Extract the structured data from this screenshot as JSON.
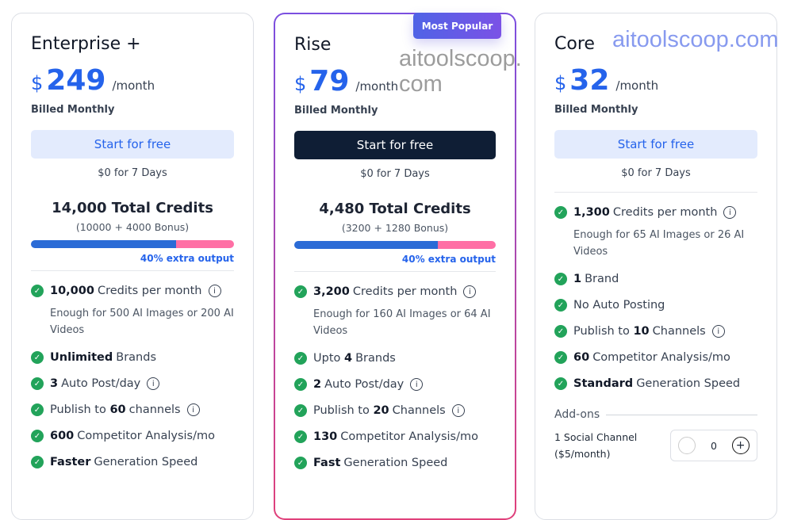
{
  "plans": [
    {
      "name": "Enterprise +",
      "currency": "$",
      "price": "249",
      "period": "/month",
      "billing": "Billed Monthly",
      "cta": "Start for free",
      "trial": "$0 for 7 Days",
      "total_credits": "14,000 Total Credits",
      "breakdown": "(10000 + 4000 Bonus)",
      "base_fraction": 0.714,
      "extra": "40% extra output",
      "features": [
        {
          "bold": "10,000",
          "text": "Credits per month",
          "info": true,
          "note": "Enough for 500 AI Images or 200 AI Videos"
        },
        {
          "bold": "Unlimited",
          "text": "Brands"
        },
        {
          "bold": "3",
          "text": "Auto Post/day",
          "info": true
        },
        {
          "pre": "Publish to",
          "bold": "60",
          "text": "channels",
          "info": true
        },
        {
          "bold": "600",
          "text": "Competitor Analysis/mo"
        },
        {
          "bold": "Faster",
          "text": "Generation Speed"
        }
      ]
    },
    {
      "name": "Rise",
      "currency": "$",
      "price": "79",
      "period": "/month",
      "billing": "Billed Monthly",
      "cta": "Start for free",
      "trial": "$0 for 7 Days",
      "badge": "Most Popular",
      "total_credits": "4,480 Total Credits",
      "breakdown": "(3200 + 1280 Bonus)",
      "base_fraction": 0.714,
      "extra": "40% extra output",
      "features": [
        {
          "bold": "3,200",
          "text": "Credits per month",
          "info": true,
          "note": "Enough for 160 AI Images or 64 AI Videos"
        },
        {
          "pre": "Upto",
          "bold": "4",
          "text": "Brands"
        },
        {
          "bold": "2",
          "text": "Auto Post/day",
          "info": true
        },
        {
          "pre": "Publish to",
          "bold": "20",
          "text": "Channels",
          "info": true
        },
        {
          "bold": "130",
          "text": "Competitor Analysis/mo"
        },
        {
          "bold": "Fast",
          "text": "Generation Speed"
        }
      ]
    },
    {
      "name": "Core",
      "currency": "$",
      "price": "32",
      "period": "/month",
      "billing": "Billed Monthly",
      "cta": "Start for free",
      "trial": "$0 for 7 Days",
      "features": [
        {
          "bold": "1,300",
          "text": "Credits per month",
          "info": true,
          "note": "Enough for 65 AI Images or 26 AI Videos"
        },
        {
          "bold": "1",
          "text": "Brand"
        },
        {
          "text": "No Auto Posting"
        },
        {
          "pre": "Publish to",
          "bold": "10",
          "text": "Channels",
          "info": true
        },
        {
          "bold": "60",
          "text": "Competitor Analysis/mo"
        },
        {
          "bold": "Standard",
          "text": "Generation Speed"
        }
      ],
      "addons": {
        "label": "Add-ons",
        "item": "1 Social Channel",
        "item_price": "($5/month)",
        "quantity": "0"
      }
    }
  ],
  "watermark": "aitoolscoop.com",
  "colors": {
    "accent": "#2563eb",
    "check": "#22a35a",
    "bonus": "#ff6fa5"
  }
}
